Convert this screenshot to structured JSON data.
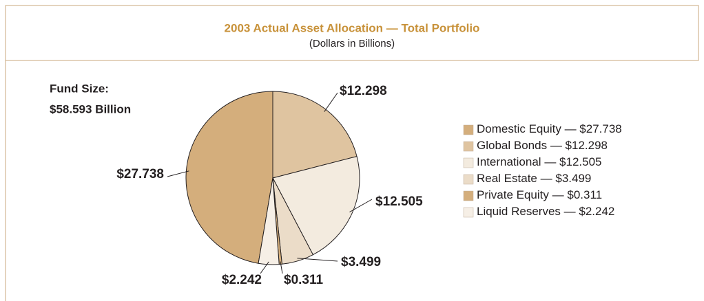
{
  "chart_data": {
    "type": "pie",
    "title": "2003 Actual Asset Allocation — Total Portfolio",
    "subtitle": "(Dollars in Billions)",
    "annotations": [
      "Fund Size:",
      "$58.593 Billion"
    ],
    "legend_separator": "—",
    "categories": [
      "Domestic Equity",
      "Global Bonds",
      "International",
      "Real Estate",
      "Private Equity",
      "Liquid Reserves"
    ],
    "values": [
      27.738,
      12.298,
      12.505,
      3.499,
      0.311,
      2.242
    ],
    "value_labels": [
      "$27.738",
      "$12.298",
      "$12.505",
      "$3.499",
      "$0.311",
      "$2.242"
    ],
    "colors": [
      "#d4ae7c",
      "#dfc4a0",
      "#f3ebdf",
      "#ebdcc8",
      "#d4ae7c",
      "#f6efe6"
    ],
    "legend": "right"
  }
}
